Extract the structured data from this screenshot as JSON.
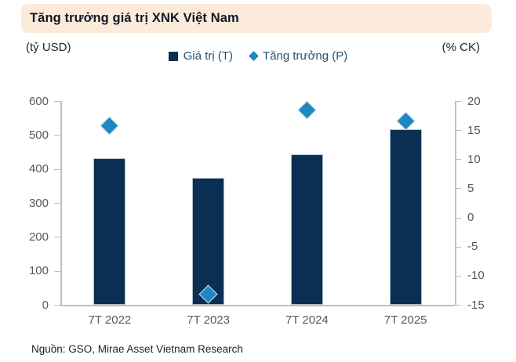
{
  "title": "Tăng trưởng giá trị XNK Việt Nam",
  "left_axis_unit": "(tỷ USD)",
  "right_axis_unit": "(% CK)",
  "legend": [
    {
      "label": "Giá trị (T)",
      "marker": "square-icon"
    },
    {
      "label": "Tăng trưởng (P)",
      "marker": "diamond-icon"
    }
  ],
  "source": "Nguồn: GSO, Mirae Asset Vietnam Research",
  "colors": {
    "bar": "#0B2E53",
    "marker": "#1F86C2",
    "title_bar_bg": "#FCEBDB",
    "title_text": "#101826",
    "axis_line": "#BFBFBF",
    "tick_text": "#595959",
    "legend_text": "#2A5172",
    "source_text": "#1F1F1F"
  },
  "chart_data": {
    "type": "bar",
    "subtype": "combo-bar-scatter",
    "title": "Tăng trưởng giá trị XNK Việt Nam",
    "categories": [
      "7T 2022",
      "7T 2023",
      "7T 2024",
      "7T 2025"
    ],
    "series": [
      {
        "name": "Giá trị (T)",
        "type": "bar",
        "axis": "left",
        "values": [
          432,
          374,
          442,
          517
        ],
        "color": "#0B2E53"
      },
      {
        "name": "Tăng trưởng (P)",
        "type": "scatter",
        "marker": "diamond",
        "axis": "right",
        "values": [
          15.8,
          -13.2,
          18.4,
          16.6
        ],
        "color": "#1F86C2"
      }
    ],
    "left_axis": {
      "label": "(tỷ USD)",
      "min": 0,
      "max": 600,
      "step": 100,
      "ticks": [
        0,
        100,
        200,
        300,
        400,
        500,
        600
      ]
    },
    "right_axis": {
      "label": "(% CK)",
      "min": -15,
      "max": 20,
      "step": 5,
      "ticks": [
        20,
        15,
        10,
        5,
        0,
        -5,
        -10,
        -15
      ]
    },
    "grid": false,
    "legend_position": "top-center",
    "xlabel": "",
    "ylabel": ""
  }
}
